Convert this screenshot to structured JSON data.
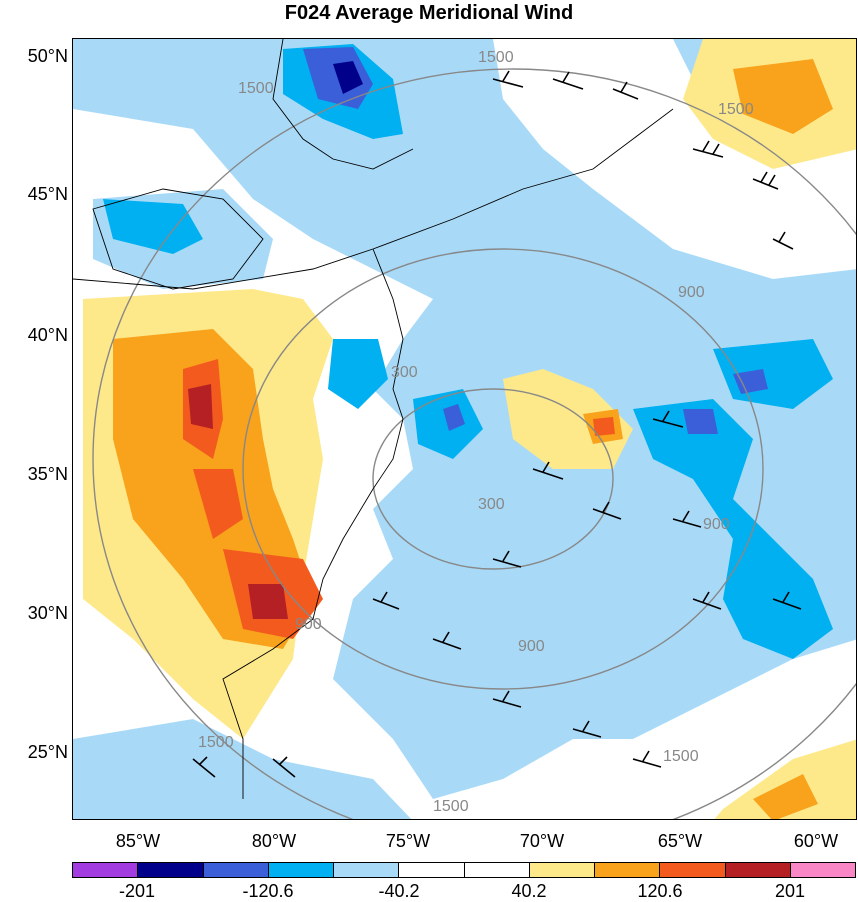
{
  "title": "F024 Average Meridional Wind",
  "latitude_labels": [
    "50°N",
    "45°N",
    "40°N",
    "35°N",
    "30°N",
    "25°N"
  ],
  "longitude_labels": [
    "85°W",
    "80°W",
    "75°W",
    "70°W",
    "65°W",
    "60°W"
  ],
  "contour_labels": [
    "1500",
    "1500",
    "1500",
    "1500",
    "1500",
    "1500",
    "900",
    "900",
    "900",
    "900",
    "300",
    "300"
  ],
  "colorbar": {
    "colors": [
      "#a23be0",
      "#00008b",
      "#3a5fd9",
      "#00b0f0",
      "#a8daf8",
      "#ffffff",
      "#ffffff",
      "#fde98a",
      "#f9a21c",
      "#f35a1e",
      "#b52024",
      "#f987c6"
    ],
    "tick_labels": [
      "-201",
      "-120.6",
      "-40.2",
      "40.2",
      "120.6",
      "201"
    ]
  },
  "overlay_colors": {
    "light_blue": "#a8daf8",
    "blue": "#00b0f0",
    "dark_blue": "#3a5fd9",
    "navy": "#00008b",
    "yellow": "#fde98a",
    "orange": "#f9a21c",
    "red_orange": "#f35a1e",
    "dark_red": "#b52024",
    "contour_gray": "#888888"
  }
}
